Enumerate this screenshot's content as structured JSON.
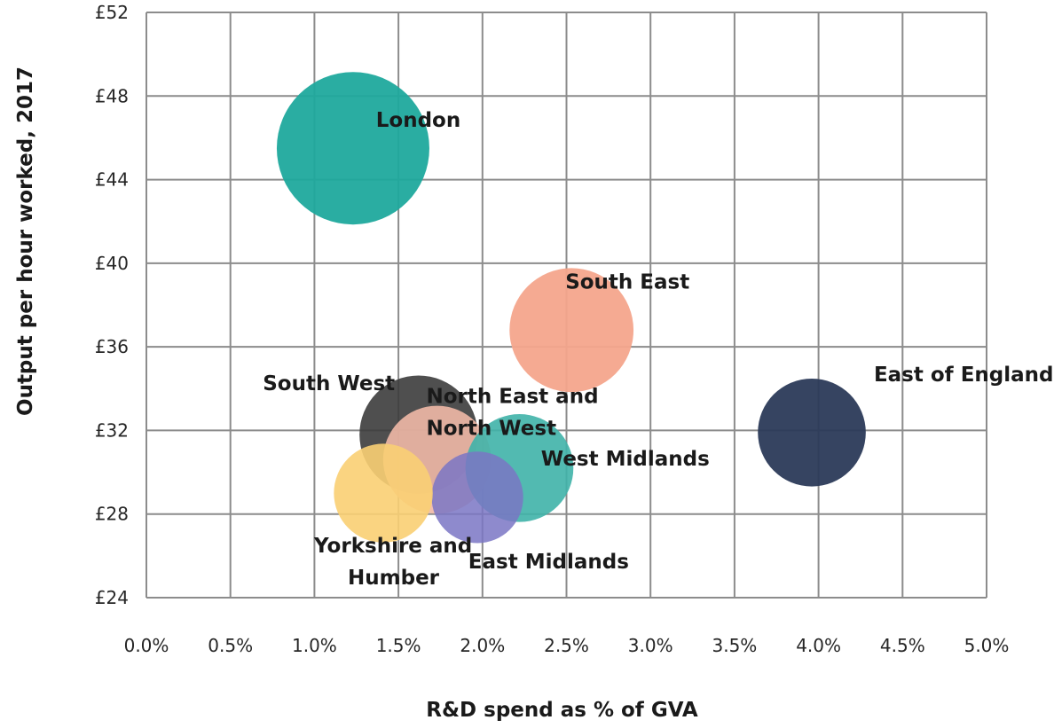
{
  "chart_data": {
    "type": "scatter",
    "subtype": "bubble",
    "xlabel": "R&D spend as % of GVA",
    "ylabel": "Output per hour worked, 2017",
    "xlim": [
      0,
      5
    ],
    "ylim": [
      24,
      52
    ],
    "x_ticks": [
      {
        "value": 0.0,
        "label": "0.0%"
      },
      {
        "value": 0.5,
        "label": "0.5%"
      },
      {
        "value": 1.0,
        "label": "1.0%"
      },
      {
        "value": 1.5,
        "label": "1.5%"
      },
      {
        "value": 2.0,
        "label": "2.0%"
      },
      {
        "value": 2.5,
        "label": "2.5%"
      },
      {
        "value": 3.0,
        "label": "3.0%"
      },
      {
        "value": 3.5,
        "label": "3.5%"
      },
      {
        "value": 4.0,
        "label": "4.0%"
      },
      {
        "value": 4.5,
        "label": "4.5%"
      },
      {
        "value": 5.0,
        "label": "5.0%"
      }
    ],
    "y_ticks": [
      {
        "value": 24,
        "label": "£24"
      },
      {
        "value": 28,
        "label": "£28"
      },
      {
        "value": 32,
        "label": "£32"
      },
      {
        "value": 36,
        "label": "£36"
      },
      {
        "value": 40,
        "label": "£40"
      },
      {
        "value": 44,
        "label": "£44"
      },
      {
        "value": 48,
        "label": "£48"
      },
      {
        "value": 52,
        "label": "£52"
      }
    ],
    "grid": true,
    "legend": "none",
    "points": [
      {
        "label": "London",
        "label_lines": [
          "London"
        ],
        "x": 1.23,
        "y": 45.5,
        "size": 1.0,
        "color": "#1fa99d",
        "opacity": 0.95,
        "label_anchor": "upper-right"
      },
      {
        "label": "South East",
        "label_lines": [
          "South East"
        ],
        "x": 2.53,
        "y": 36.8,
        "size": 0.66,
        "color": "#f4a58c",
        "opacity": 0.95,
        "label_anchor": "upper-right"
      },
      {
        "label": "South West",
        "label_lines": [
          "South West"
        ],
        "x": 1.62,
        "y": 31.8,
        "size": 0.6,
        "color": "#3c3c3c",
        "opacity": 0.9,
        "label_anchor": "upper-left"
      },
      {
        "label": "North East and North West",
        "label_lines": [
          "North East and",
          "North West"
        ],
        "x": 1.73,
        "y": 30.6,
        "size": 0.5,
        "color": "#f0b8a6",
        "opacity": 0.9,
        "label_anchor": "upper-right"
      },
      {
        "label": "West Midlands",
        "label_lines": [
          "West Midlands"
        ],
        "x": 2.22,
        "y": 30.2,
        "size": 0.5,
        "color": "#3fb2a8",
        "opacity": 0.9,
        "label_anchor": "right"
      },
      {
        "label": "East Midlands",
        "label_lines": [
          "East Midlands"
        ],
        "x": 1.97,
        "y": 28.8,
        "size": 0.36,
        "color": "#7a75c4",
        "opacity": 0.85,
        "label_anchor": "lower-right"
      },
      {
        "label": "Yorkshire and Humber",
        "label_lines": [
          "Yorkshire and",
          "Humber"
        ],
        "x": 1.41,
        "y": 29.0,
        "size": 0.42,
        "color": "#f9cf73",
        "opacity": 0.9,
        "label_anchor": "lower-left"
      },
      {
        "label": "East of England",
        "label_lines": [
          "East of England"
        ],
        "x": 3.96,
        "y": 31.9,
        "size": 0.5,
        "color": "#2b3a59",
        "opacity": 0.95,
        "label_anchor": "upper-right"
      }
    ]
  }
}
